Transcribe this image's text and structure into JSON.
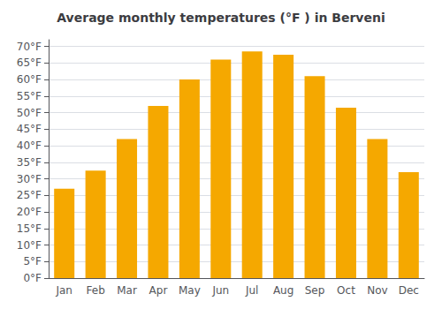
{
  "chart_data": {
    "type": "bar",
    "title": "Average monthly temperatures (°F ) in Berveni",
    "categories": [
      "Jan",
      "Feb",
      "Mar",
      "Apr",
      "May",
      "Jun",
      "Jul",
      "Aug",
      "Sep",
      "Oct",
      "Nov",
      "Dec"
    ],
    "values": [
      27,
      32.5,
      42,
      52,
      60,
      66,
      68.5,
      67.5,
      61,
      51.5,
      42,
      32
    ],
    "color": "#F5A800",
    "ylim": [
      0,
      72
    ],
    "yticks": [
      {
        "value": 0,
        "label": "0°F"
      },
      {
        "value": 5,
        "label": "5°F"
      },
      {
        "value": 10,
        "label": "10°F"
      },
      {
        "value": 15,
        "label": "15°F"
      },
      {
        "value": 20,
        "label": "20°F"
      },
      {
        "value": 25,
        "label": "25°F"
      },
      {
        "value": 30,
        "label": "30°F"
      },
      {
        "value": 35,
        "label": "35°F"
      },
      {
        "value": 40,
        "label": "40°F"
      },
      {
        "value": 45,
        "label": "45°F"
      },
      {
        "value": 50,
        "label": "50°F"
      },
      {
        "value": 55,
        "label": "55°F"
      },
      {
        "value": 60,
        "label": "60°F"
      },
      {
        "value": 65,
        "label": "65°F"
      },
      {
        "value": 70,
        "label": "70°F"
      }
    ],
    "grid": true
  }
}
